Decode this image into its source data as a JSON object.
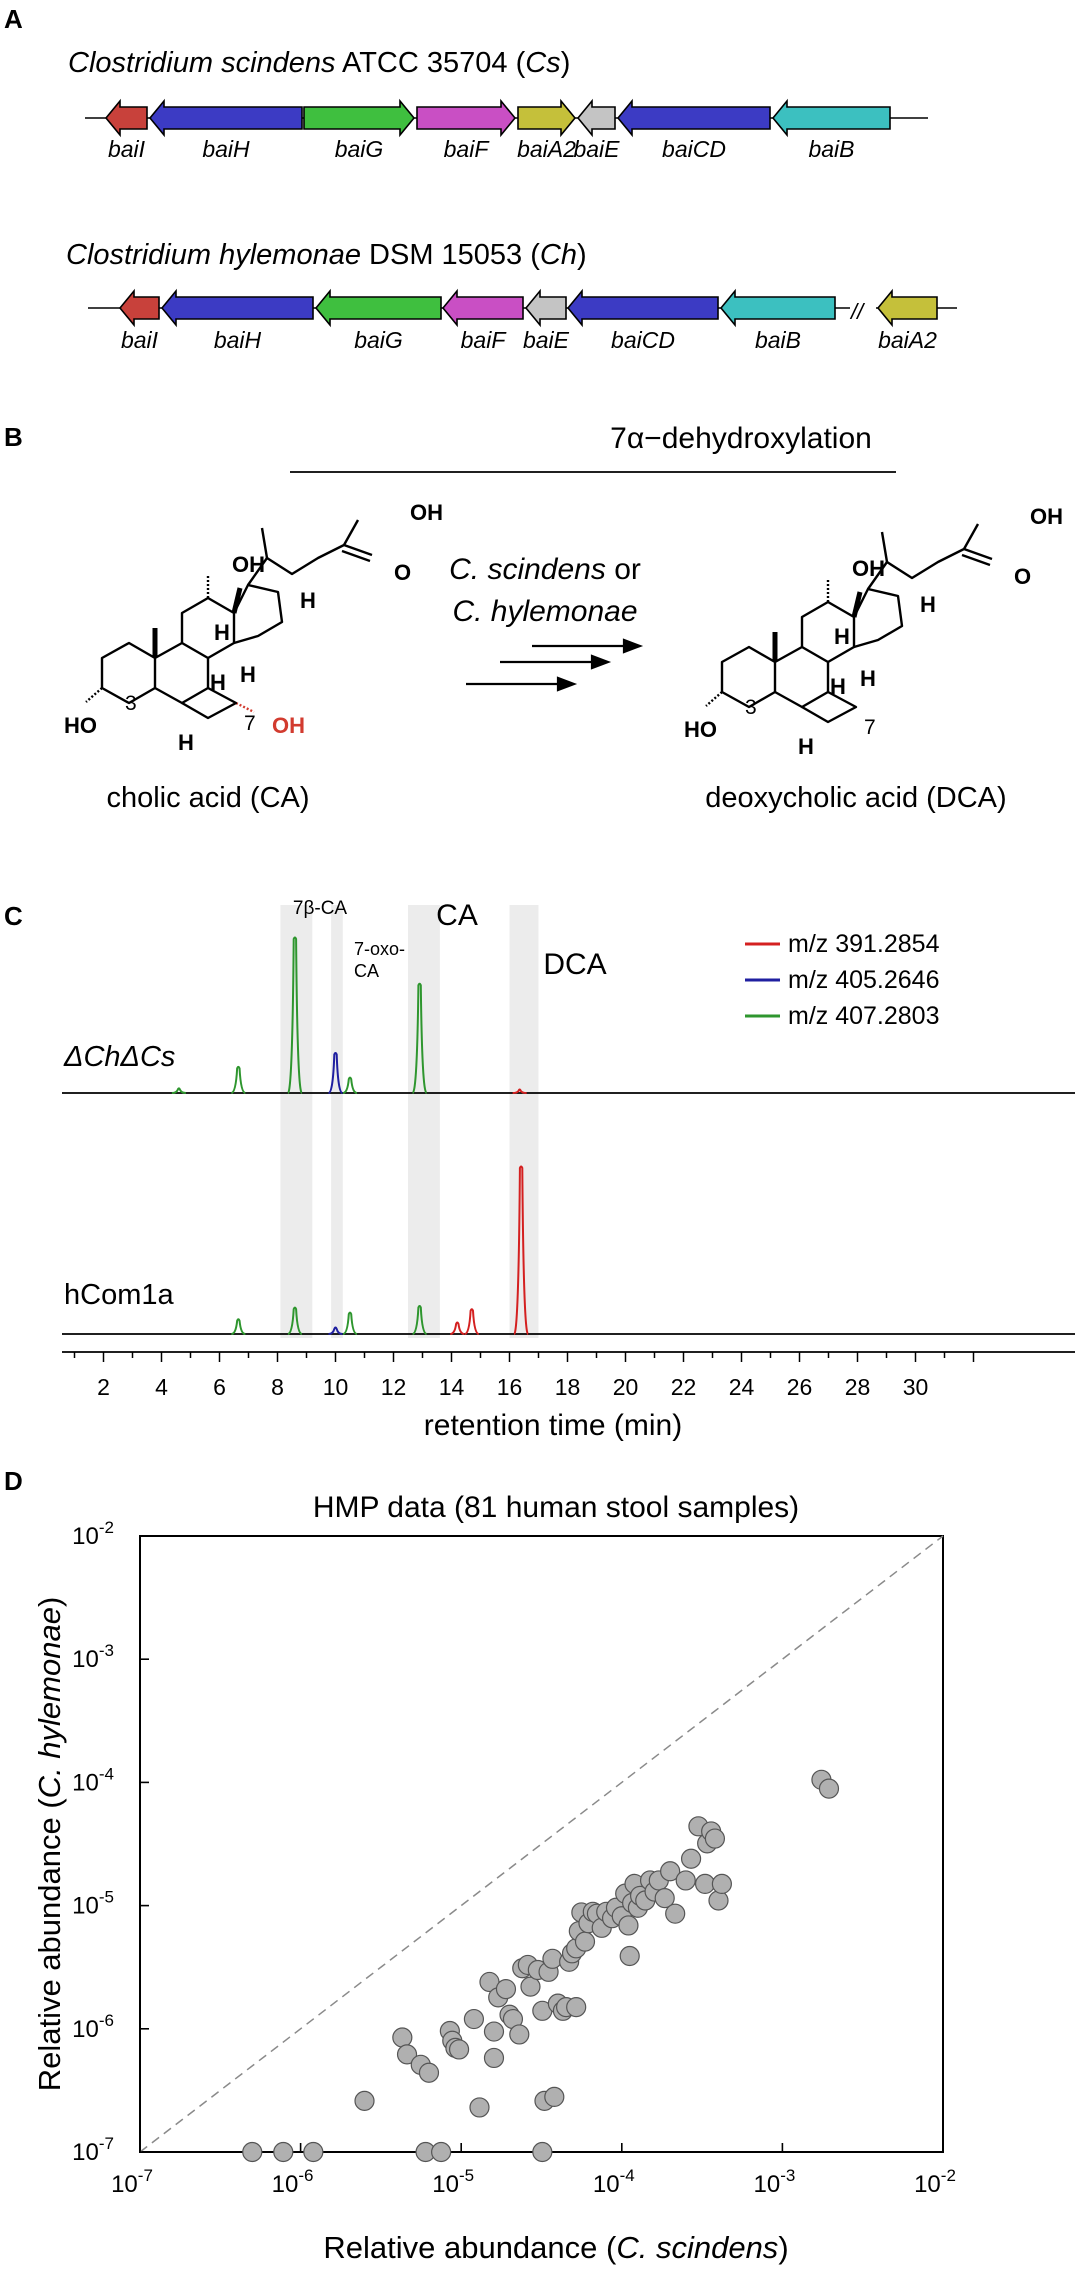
{
  "panels": [
    "A",
    "B",
    "C",
    "D"
  ],
  "panel_a": {
    "cs": {
      "organism": "Clostridium scindens",
      "strain": "ATCC 35704",
      "abbrev": "Cs",
      "genes": [
        {
          "name": "baiI",
          "color": "#c8413b",
          "dir": "left"
        },
        {
          "name": "baiH",
          "color": "#3c3bc4",
          "dir": "left"
        },
        {
          "name": "baiG",
          "color": "#3fbf3f",
          "dir": "right"
        },
        {
          "name": "baiF",
          "color": "#c94fc4",
          "dir": "right"
        },
        {
          "name": "baiA2",
          "color": "#c5c03a",
          "dir": "right"
        },
        {
          "name": "baiE",
          "color": "#c4c4c4",
          "dir": "left"
        },
        {
          "name": "baiCD",
          "color": "#3c3bc4",
          "dir": "left"
        },
        {
          "name": "baiB",
          "color": "#3cc0c0",
          "dir": "left"
        }
      ]
    },
    "ch": {
      "organism": "Clostridium hylemonae",
      "strain": "DSM 15053",
      "abbrev": "Ch",
      "break_mark": "//",
      "genes": [
        {
          "name": "baiI",
          "color": "#c8413b",
          "dir": "left"
        },
        {
          "name": "baiH",
          "color": "#3c3bc4",
          "dir": "left"
        },
        {
          "name": "baiG",
          "color": "#3fbf3f",
          "dir": "left"
        },
        {
          "name": "baiF",
          "color": "#c94fc4",
          "dir": "left"
        },
        {
          "name": "baiE",
          "color": "#c4c4c4",
          "dir": "left"
        },
        {
          "name": "baiCD",
          "color": "#3c3bc4",
          "dir": "left"
        },
        {
          "name": "baiB",
          "color": "#3cc0c0",
          "dir": "left"
        },
        {
          "name": "baiA2",
          "color": "#c5c03a",
          "dir": "left"
        }
      ]
    }
  },
  "panel_b": {
    "reaction_title": "7α−dehydroxylation",
    "organisms_line1": "C. scindens",
    "organisms_or": " or",
    "organisms_line2": "C. hylemonae",
    "substrate": "cholic acid (CA)",
    "product": "deoxycholic acid (DCA)",
    "atom_labels": {
      "oh": "OH",
      "ho": "HO",
      "h": "H",
      "c3": "3",
      "c7": "7",
      "oh_removed": "OH",
      "oh_removed_color": "#d23b2f"
    }
  },
  "chart_data": [
    {
      "type": "line",
      "panel": "C",
      "xlabel": "retention time (min)",
      "x_ticks": [
        2,
        4,
        6,
        8,
        10,
        12,
        14,
        16,
        18,
        20,
        22,
        24,
        26,
        28,
        30
      ],
      "xlim": [
        0,
        32.5
      ],
      "legend": [
        {
          "name": "m/z 391.2854",
          "color": "#d42020"
        },
        {
          "name": "m/z 405.2646",
          "color": "#1f1fa0"
        },
        {
          "name": "m/z 407.2803",
          "color": "#2e962e"
        }
      ],
      "highlight_bands": [
        {
          "label": "7β-CA",
          "x": [
            8.1,
            9.2
          ]
        },
        {
          "label_lines": [
            "7-oxo-",
            "CA"
          ],
          "x": [
            9.85,
            10.25
          ]
        },
        {
          "label": "CA",
          "x": [
            12.5,
            13.6
          ]
        },
        {
          "label": "DCA",
          "x": [
            16.0,
            17.0
          ]
        }
      ],
      "traces": [
        {
          "sample": "ΔChΔCs",
          "peaks": [
            {
              "series": "m/z 407.2803",
              "rt": 4.6,
              "height": 0.02
            },
            {
              "series": "m/z 407.2803",
              "rt": 6.65,
              "height": 0.16
            },
            {
              "series": "m/z 407.2803",
              "rt": 8.6,
              "height": 1.0
            },
            {
              "series": "m/z 405.2646",
              "rt": 10.0,
              "height": 0.25
            },
            {
              "series": "m/z 407.2803",
              "rt": 10.5,
              "height": 0.09
            },
            {
              "series": "m/z 407.2803",
              "rt": 12.9,
              "height": 0.7
            },
            {
              "series": "m/z 391.2854",
              "rt": 16.35,
              "height": 0.01
            }
          ]
        },
        {
          "sample": "hCom1a",
          "peaks": [
            {
              "series": "m/z 407.2803",
              "rt": 6.65,
              "height": 0.08
            },
            {
              "series": "m/z 407.2803",
              "rt": 8.6,
              "height": 0.15
            },
            {
              "series": "m/z 405.2646",
              "rt": 10.0,
              "height": 0.03
            },
            {
              "series": "m/z 407.2803",
              "rt": 10.5,
              "height": 0.12
            },
            {
              "series": "m/z 407.2803",
              "rt": 12.9,
              "height": 0.16
            },
            {
              "series": "m/z 391.2854",
              "rt": 14.2,
              "height": 0.06
            },
            {
              "series": "m/z 391.2854",
              "rt": 14.7,
              "height": 0.14
            },
            {
              "series": "m/z 391.2854",
              "rt": 16.4,
              "height": 1.0
            }
          ]
        }
      ]
    },
    {
      "type": "scatter",
      "panel": "D",
      "title": "HMP data (81 human stool samples)",
      "xlabel": "Relative abundance (C. scindens)",
      "ylabel": "Relative abundance (C. hylemonae)",
      "x_scale": "log",
      "y_scale": "log",
      "xlim": [
        1e-07,
        0.01
      ],
      "ylim": [
        1e-07,
        0.01
      ],
      "x_ticks": [
        1e-07,
        1e-06,
        1e-05,
        0.0001,
        0.001,
        0.01
      ],
      "y_ticks": [
        1e-07,
        1e-06,
        1e-05,
        0.0001,
        0.001,
        0.01
      ],
      "tick_base": "10",
      "tick_exponents": [
        "-7",
        "-6",
        "-5",
        "-4",
        "-3",
        "-2"
      ],
      "reference_line": "y = x (dashed)",
      "point_color": "#b0b0b0",
      "points": [
        [
          5e-07,
          1e-07
        ],
        [
          7.8e-07,
          1e-07
        ],
        [
          1.2e-06,
          1e-07
        ],
        [
          6e-06,
          1e-07
        ],
        [
          7.5e-06,
          1e-07
        ],
        [
          3.2e-05,
          1e-07
        ],
        [
          2.5e-06,
          2.6e-07
        ],
        [
          1.3e-05,
          2.3e-07
        ],
        [
          3.3e-05,
          2.6e-07
        ],
        [
          3.8e-05,
          2.8e-07
        ],
        [
          4.3e-06,
          8.5e-07
        ],
        [
          4.6e-06,
          6.2e-07
        ],
        [
          5.6e-06,
          5.1e-07
        ],
        [
          6.3e-06,
          4.4e-07
        ],
        [
          8.5e-06,
          9.6e-07
        ],
        [
          8.8e-06,
          8e-07
        ],
        [
          9.2e-06,
          7e-07
        ],
        [
          9.7e-06,
          6.8e-07
        ],
        [
          1.2e-05,
          1.2e-06
        ],
        [
          1.5e-05,
          2.4e-06
        ],
        [
          1.6e-05,
          9.5e-07
        ],
        [
          1.6e-05,
          5.8e-07
        ],
        [
          1.7e-05,
          1.8e-06
        ],
        [
          1.9e-05,
          2.1e-06
        ],
        [
          2e-05,
          1.3e-06
        ],
        [
          2.1e-05,
          1.2e-06
        ],
        [
          2.3e-05,
          9e-07
        ],
        [
          2.4e-05,
          3.1e-06
        ],
        [
          2.6e-05,
          3.3e-06
        ],
        [
          2.7e-05,
          2.2e-06
        ],
        [
          3e-05,
          3e-06
        ],
        [
          3.2e-05,
          1.4e-06
        ],
        [
          3.5e-05,
          2.9e-06
        ],
        [
          3.7e-05,
          3.7e-06
        ],
        [
          4e-05,
          1.6e-06
        ],
        [
          4.3e-05,
          1.4e-06
        ],
        [
          4.5e-05,
          1.5e-06
        ],
        [
          4.7e-05,
          3.5e-06
        ],
        [
          4.9e-05,
          4.1e-06
        ],
        [
          5.2e-05,
          4.5e-06
        ],
        [
          5.2e-05,
          1.5e-06
        ],
        [
          5.4e-05,
          6.2e-06
        ],
        [
          5.6e-05,
          8.8e-06
        ],
        [
          5.9e-05,
          5.1e-06
        ],
        [
          6.2e-05,
          7.2e-06
        ],
        [
          6.6e-05,
          8.9e-06
        ],
        [
          7e-05,
          8.6e-06
        ],
        [
          7.5e-05,
          6.6e-06
        ],
        [
          8e-05,
          8.9e-06
        ],
        [
          8.7e-05,
          7.9e-06
        ],
        [
          9.2e-05,
          9.6e-06
        ],
        [
          0.0001,
          8.2e-06
        ],
        [
          0.000105,
          1.25e-05
        ],
        [
          0.00011,
          6.9e-06
        ],
        [
          0.000112,
          3.9e-06
        ],
        [
          0.000116,
          1.05e-05
        ],
        [
          0.00012,
          1.5e-05
        ],
        [
          0.000126,
          9.6e-06
        ],
        [
          0.00013,
          1.2e-05
        ],
        [
          0.00014,
          1.1e-05
        ],
        [
          0.00015,
          1.6e-05
        ],
        [
          0.00016,
          1.3e-05
        ],
        [
          0.00017,
          1.6e-05
        ],
        [
          0.000185,
          1.15e-05
        ],
        [
          0.0002,
          1.9e-05
        ],
        [
          0.000215,
          8.6e-06
        ],
        [
          0.00025,
          1.6e-05
        ],
        [
          0.00027,
          2.4e-05
        ],
        [
          0.0003,
          4.4e-05
        ],
        [
          0.00033,
          1.5e-05
        ],
        [
          0.00034,
          3.2e-05
        ],
        [
          0.00036,
          4e-05
        ],
        [
          0.00038,
          3.5e-05
        ],
        [
          0.0004,
          1.1e-05
        ],
        [
          0.00042,
          1.5e-05
        ],
        [
          0.00175,
          0.000105
        ],
        [
          0.00195,
          8.9e-05
        ]
      ]
    }
  ]
}
